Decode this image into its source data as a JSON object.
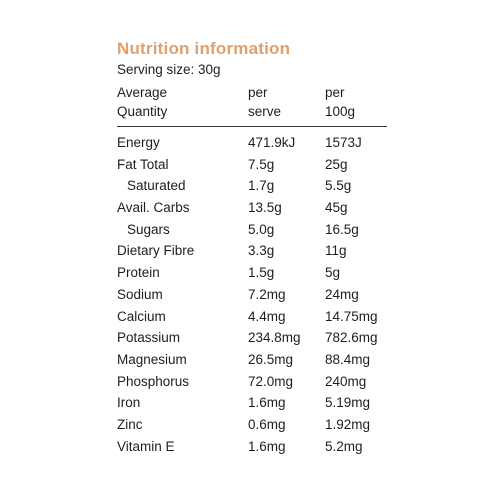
{
  "title": "Nutrition information",
  "serving_size": "Serving size: 30g",
  "columns": {
    "quantity_line1": "Average",
    "quantity_line2": "Quantity",
    "serve_line1": "per",
    "serve_line2": "serve",
    "per100_line1": "per",
    "per100_line2": "100g"
  },
  "rows": [
    {
      "name": "Energy",
      "per_serve": "471.9kJ",
      "per_100g": "1573J"
    },
    {
      "name": "Fat Total",
      "per_serve": "7.5g",
      "per_100g": "25g"
    },
    {
      "name": "Saturated",
      "per_serve": "1.7g",
      "per_100g": "5.5g"
    },
    {
      "name": "Avail. Carbs",
      "per_serve": "13.5g",
      "per_100g": "45g"
    },
    {
      "name": "Sugars",
      "per_serve": "5.0g",
      "per_100g": "16.5g"
    },
    {
      "name": "Dietary Fibre",
      "per_serve": "3.3g",
      "per_100g": "11g"
    },
    {
      "name": "Protein",
      "per_serve": "1.5g",
      "per_100g": "5g"
    },
    {
      "name": "Sodium",
      "per_serve": "7.2mg",
      "per_100g": "24mg"
    },
    {
      "name": "Calcium",
      "per_serve": "4.4mg",
      "per_100g": "14.75mg"
    },
    {
      "name": "Potassium",
      "per_serve": "234.8mg",
      "per_100g": "782.6mg"
    },
    {
      "name": "Magnesium",
      "per_serve": "26.5mg",
      "per_100g": "88.4mg"
    },
    {
      "name": "Phosphorus",
      "per_serve": "72.0mg",
      "per_100g": "240mg"
    },
    {
      "name": "Iron",
      "per_serve": "1.6mg",
      "per_100g": "5.19mg"
    },
    {
      "name": "Zinc",
      "per_serve": "0.6mg",
      "per_100g": "1.92mg"
    },
    {
      "name": "Vitamin E",
      "per_serve": "1.6mg",
      "per_100g": "5.2mg"
    }
  ],
  "colors": {
    "title": "#e0a06e",
    "text": "#1e1e1e"
  }
}
